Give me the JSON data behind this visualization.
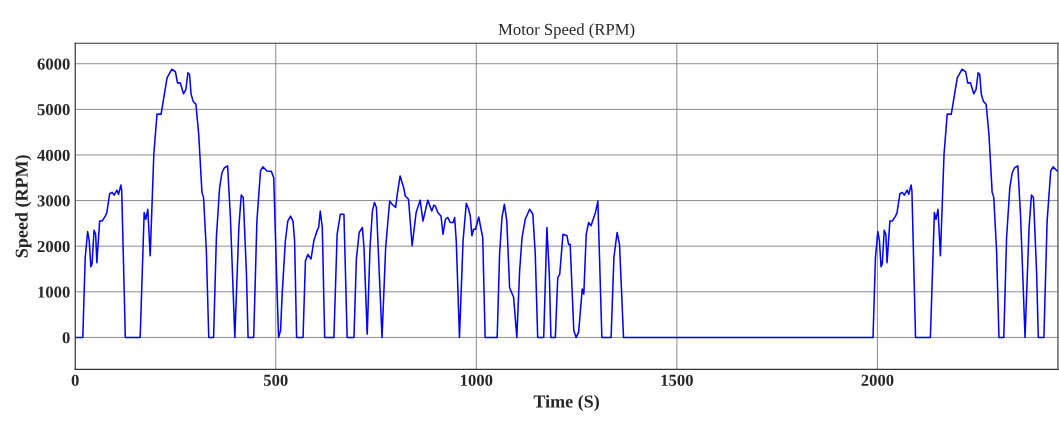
{
  "chart_data": {
    "type": "line",
    "title": "Motor Speed (RPM)",
    "xlabel": "Time (S)",
    "ylabel": "Speed (RPM)",
    "xlim": [
      0,
      2450
    ],
    "ylim": [
      -700,
      6450
    ],
    "xticks": [
      0,
      500,
      1000,
      1500,
      2000
    ],
    "yticks": [
      0,
      1000,
      2000,
      3000,
      4000,
      5000,
      6000
    ],
    "grid": true,
    "line_style": "solid",
    "series": [
      {
        "color": "#0000ff",
        "x": [
          0,
          19,
          25,
          31,
          35,
          39,
          42,
          47,
          51,
          54,
          61,
          67,
          75,
          79,
          86,
          92,
          97,
          104,
          108,
          114,
          116,
          125,
          162,
          172,
          176,
          181,
          187,
          196,
          204,
          214,
          229,
          241,
          250,
          255,
          262,
          270,
          276,
          281,
          285,
          289,
          294,
          301,
          308,
          316,
          320,
          327,
          333,
          345,
          352,
          360,
          366,
          372,
          380,
          387,
          398,
          408,
          414,
          419,
          427,
          431,
          445,
          453,
          462,
          468,
          478,
          489,
          495,
          502,
          507,
          512,
          516,
          524,
          530,
          537,
          543,
          547,
          552,
          568,
          574,
          580,
          588,
          595,
          603,
          607,
          611,
          616,
          622,
          645,
          653,
          661,
          670,
          678,
          695,
          701,
          708,
          716,
          720,
          728,
          735,
          741,
          746,
          751,
          765,
          774,
          784,
          790,
          799,
          803,
          810,
          819,
          823,
          831,
          840,
          850,
          860,
          867,
          879,
          889,
          894,
          898,
          904,
          912,
          917,
          923,
          929,
          935,
          942,
          946,
          950,
          958,
          967,
          975,
          981,
          985,
          989,
          993,
          998,
          1006,
          1016,
          1022,
          1052,
          1058,
          1064,
          1070,
          1076,
          1083,
          1093,
          1101,
          1108,
          1114,
          1122,
          1133,
          1141,
          1147,
          1153,
          1168,
          1176,
          1182,
          1186,
          1197,
          1203,
          1208,
          1216,
          1226,
          1230,
          1234,
          1243,
          1249,
          1255,
          1264,
          1268,
          1274,
          1280,
          1286,
          1297,
          1303,
          1313,
          1336,
          1343,
          1351,
          1357,
          1367,
          1989,
          1995,
          2001,
          2005,
          2009,
          2012,
          2017,
          2021,
          2024,
          2031,
          2037,
          2045,
          2049,
          2056,
          2062,
          2067,
          2074,
          2078,
          2084,
          2086,
          2095,
          2132,
          2142,
          2146,
          2151,
          2157,
          2166,
          2174,
          2184,
          2199,
          2211,
          2220,
          2225,
          2232,
          2240,
          2246,
          2251,
          2255,
          2259,
          2264,
          2271,
          2278,
          2286,
          2290,
          2297,
          2303,
          2315,
          2322,
          2330,
          2336,
          2342,
          2350,
          2357,
          2368,
          2378,
          2384,
          2389,
          2397,
          2401,
          2415,
          2423,
          2432,
          2438,
          2448,
          2450
        ],
        "values": [
          0,
          0,
          1750,
          2320,
          2120,
          1550,
          1610,
          2350,
          2260,
          1640,
          2550,
          2550,
          2660,
          2740,
          3150,
          3180,
          3120,
          3230,
          3140,
          3340,
          3210,
          0,
          0,
          2740,
          2590,
          2810,
          1790,
          4010,
          4900,
          4890,
          5690,
          5880,
          5820,
          5580,
          5580,
          5340,
          5440,
          5800,
          5770,
          5330,
          5180,
          5110,
          4450,
          3180,
          3070,
          1900,
          0,
          0,
          2190,
          3280,
          3610,
          3720,
          3760,
          2630,
          0,
          2410,
          3120,
          3070,
          1390,
          0,
          0,
          2550,
          3650,
          3740,
          3650,
          3640,
          3500,
          1390,
          0,
          150,
          950,
          2120,
          2550,
          2660,
          2550,
          2120,
          0,
          0,
          1680,
          1820,
          1720,
          2120,
          2340,
          2410,
          2770,
          2410,
          0,
          0,
          2260,
          2700,
          2700,
          0,
          0,
          1720,
          2300,
          2410,
          1970,
          70,
          1970,
          2770,
          2960,
          2850,
          0,
          1970,
          2990,
          2920,
          2850,
          3140,
          3540,
          3280,
          3100,
          3030,
          2010,
          2740,
          3010,
          2550,
          3010,
          2770,
          2900,
          2880,
          2740,
          2660,
          2260,
          2590,
          2630,
          2520,
          2520,
          2630,
          2120,
          0,
          2120,
          2940,
          2810,
          2660,
          2230,
          2370,
          2370,
          2640,
          2190,
          0,
          0,
          1820,
          2630,
          2920,
          2550,
          1090,
          880,
          0,
          1460,
          2190,
          2590,
          2810,
          2700,
          1820,
          0,
          0,
          2410,
          1390,
          0,
          0,
          1310,
          1390,
          2260,
          2230,
          2040,
          2040,
          150,
          0,
          110,
          1060,
          950,
          2260,
          2520,
          2450,
          2740,
          2990,
          0,
          0,
          1750,
          2300,
          2040,
          0,
          0,
          1750,
          2320,
          2120,
          1550,
          1610,
          2350,
          2260,
          1640,
          2550,
          2550,
          2660,
          2740,
          3150,
          3180,
          3120,
          3230,
          3140,
          3340,
          3210,
          0,
          0,
          2740,
          2590,
          2810,
          1790,
          4010,
          4900,
          4890,
          5690,
          5880,
          5820,
          5580,
          5580,
          5340,
          5440,
          5800,
          5770,
          5330,
          5180,
          5110,
          4450,
          3180,
          3070,
          1900,
          0,
          0,
          2190,
          3280,
          3610,
          3720,
          3760,
          2630,
          0,
          2410,
          3120,
          3070,
          1390,
          0,
          0,
          2550,
          3650,
          3740,
          3650,
          3650
        ]
      }
    ]
  }
}
